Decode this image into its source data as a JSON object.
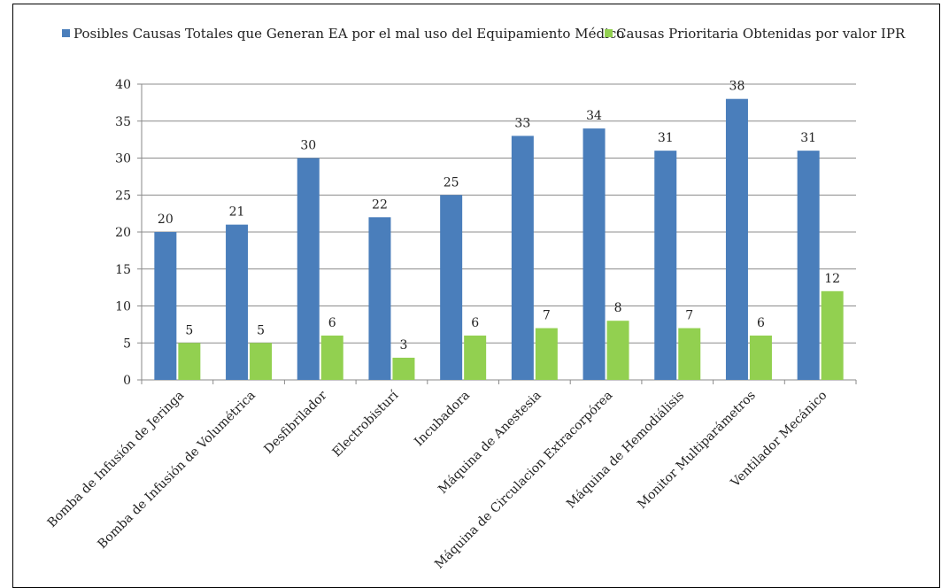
{
  "chart_data": {
    "type": "bar",
    "categories": [
      "Bomba de Infusión de Jeringa",
      "Bomba de Infusión de Volumétrica",
      "Desfibrilador",
      "Electrobisturí",
      "Incubadora",
      "Máquina de Anestesia",
      "Máquina de Circulacion Extracorpórea",
      "Máquina de Hemodiálisis",
      "Monitor Multiparámetros",
      "Ventilador Mecánico"
    ],
    "series": [
      {
        "name": "Posibles Causas Totales que Generan EA por el mal uso del Equipamiento Médico",
        "color": "#4a7ebb",
        "values": [
          20,
          21,
          30,
          22,
          25,
          33,
          34,
          31,
          38,
          31
        ]
      },
      {
        "name": "Causas Prioritaria Obtenidas por valor IPR",
        "color": "#92d050",
        "values": [
          5,
          5,
          6,
          3,
          6,
          7,
          8,
          7,
          6,
          12
        ]
      }
    ],
    "ylim": [
      0,
      40
    ],
    "yticks": [
      0,
      5,
      10,
      15,
      20,
      25,
      30,
      35,
      40
    ],
    "grid": true,
    "legend": "top"
  }
}
